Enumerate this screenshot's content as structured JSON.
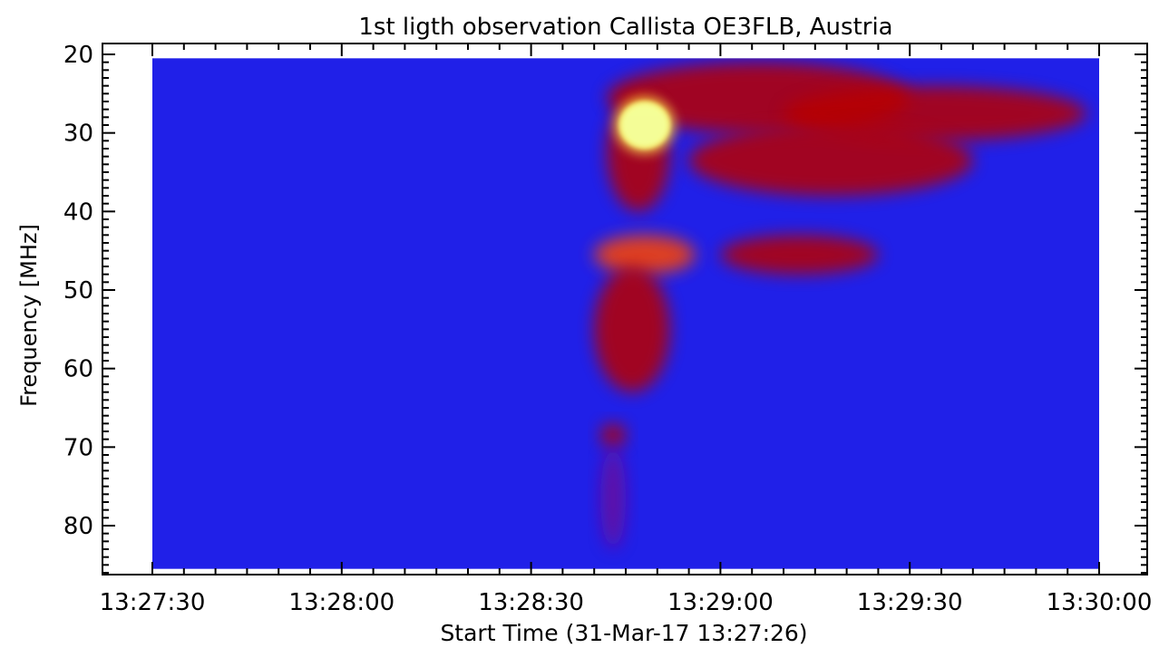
{
  "chart_data": {
    "type": "heatmap",
    "title": "1st ligth observation Callista OE3FLB, Austria",
    "xlabel": "Start Time (31-Mar-17 13:27:26)",
    "ylabel": "Frequency [MHz]",
    "x_unit": "seconds from 13:27:30",
    "xlim": [
      0,
      150
    ],
    "ylim": [
      86,
      20
    ],
    "x_ticks": [
      {
        "value": 0,
        "label": "13:27:30"
      },
      {
        "value": 30,
        "label": "13:28:00"
      },
      {
        "value": 60,
        "label": "13:28:30"
      },
      {
        "value": 90,
        "label": "13:29:00"
      },
      {
        "value": 120,
        "label": "13:29:30"
      },
      {
        "value": 150,
        "label": "13:30:00"
      }
    ],
    "y_ticks": [
      {
        "value": 20,
        "label": "20"
      },
      {
        "value": 30,
        "label": "30"
      },
      {
        "value": 40,
        "label": "40"
      },
      {
        "value": 50,
        "label": "50"
      },
      {
        "value": 60,
        "label": "60"
      },
      {
        "value": 70,
        "label": "70"
      },
      {
        "value": 80,
        "label": "80"
      }
    ],
    "data_extent": {
      "time": [
        0,
        150
      ],
      "freq": [
        20.5,
        85.5
      ]
    },
    "colors": {
      "background": "#2020e8",
      "low": "#6a0c9c",
      "mid": "#b80000",
      "high": "#ff4400",
      "peak": "#ffee55",
      "max": "#f4ff9a"
    },
    "emission_regions": [
      {
        "t": [
          72,
          120
        ],
        "f": [
          21,
          30
        ],
        "level": 0.55
      },
      {
        "t": [
          100,
          148
        ],
        "f": [
          24,
          31
        ],
        "level": 0.6
      },
      {
        "t": [
          85,
          130
        ],
        "f": [
          29,
          38
        ],
        "level": 0.5
      },
      {
        "t": [
          72,
          82
        ],
        "f": [
          25,
          40
        ],
        "level": 0.7
      },
      {
        "t": [
          74,
          82
        ],
        "f": [
          26,
          32
        ],
        "level": 1.0
      },
      {
        "t": [
          70,
          86
        ],
        "f": [
          43,
          48
        ],
        "level": 0.85
      },
      {
        "t": [
          90,
          115
        ],
        "f": [
          43,
          48
        ],
        "level": 0.65
      },
      {
        "t": [
          70,
          82
        ],
        "f": [
          47,
          63
        ],
        "level": 0.75
      },
      {
        "t": [
          71,
          75
        ],
        "f": [
          67,
          70
        ],
        "level": 0.7
      },
      {
        "t": [
          71,
          75
        ],
        "f": [
          70,
          83
        ],
        "level": 0.3
      }
    ]
  }
}
